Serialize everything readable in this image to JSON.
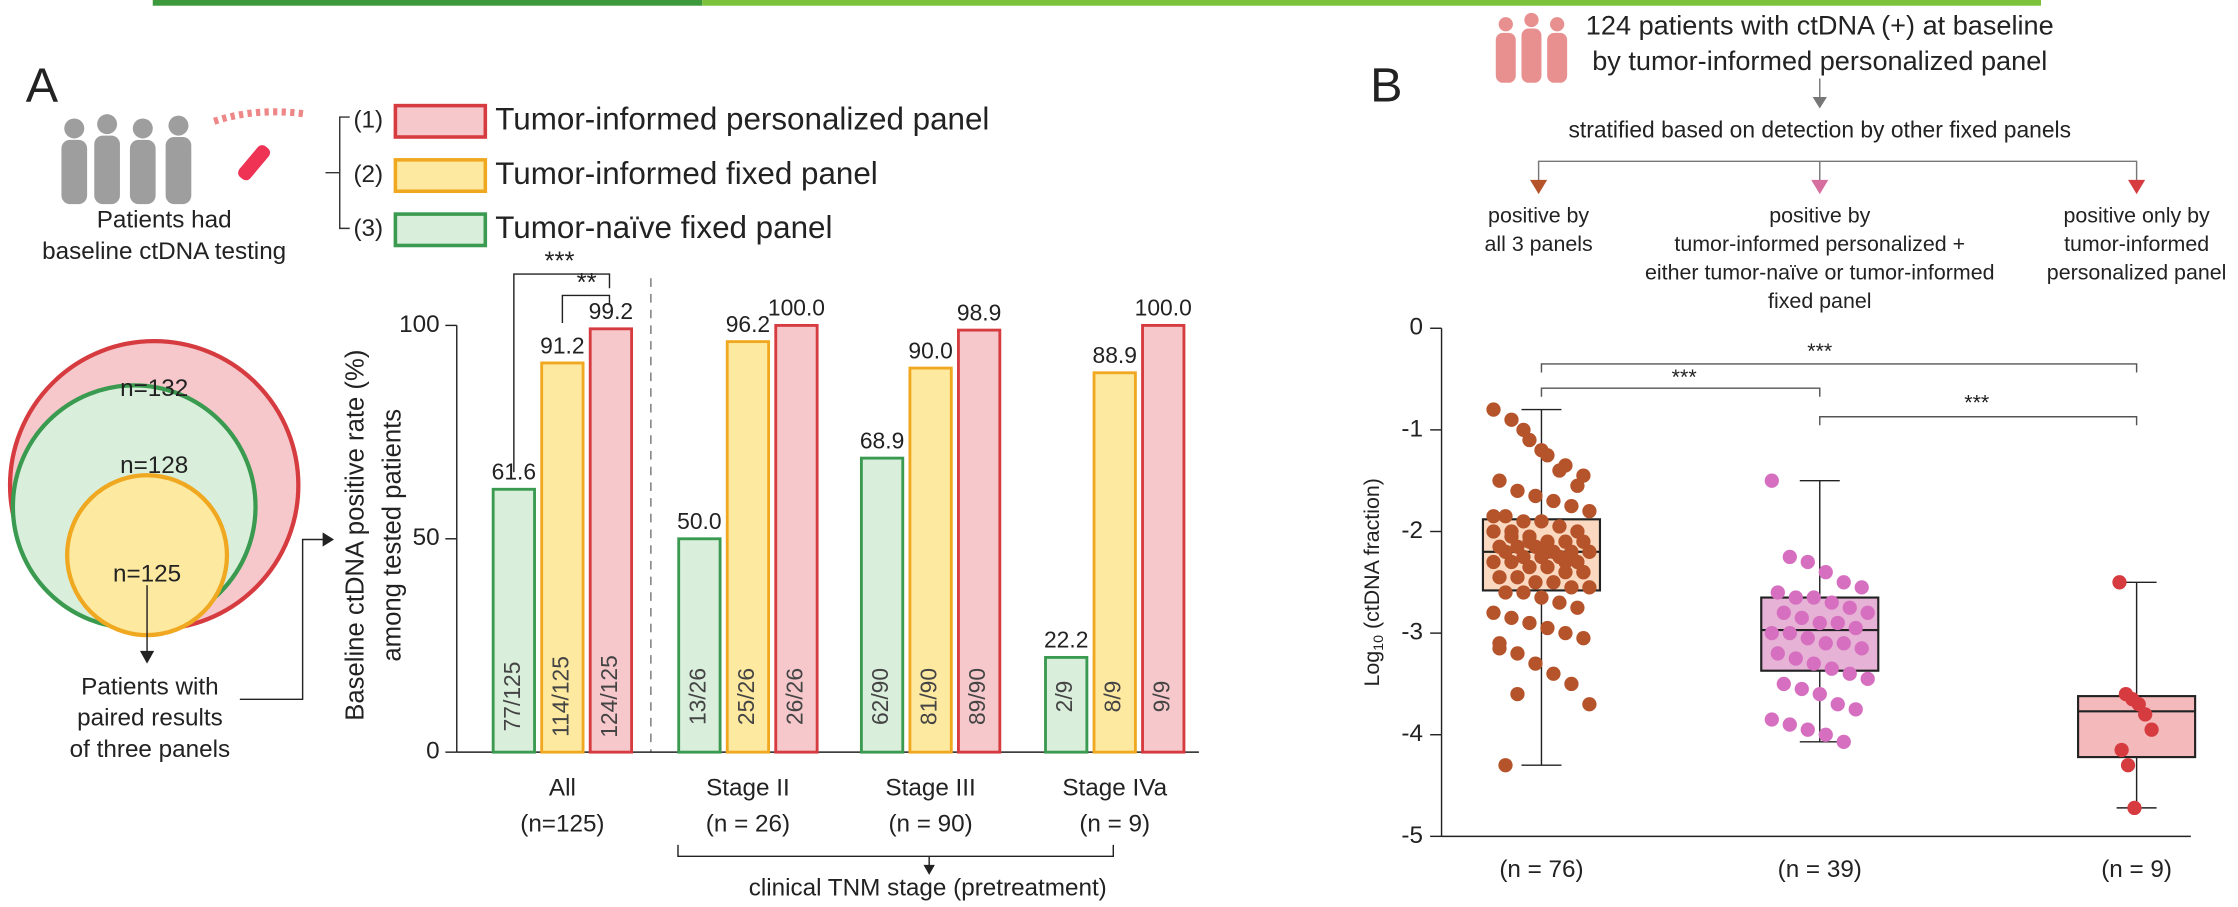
{
  "chart_data": [
    {
      "type": "bar",
      "panel_label": "A",
      "ylabel": [
        "Baseline ctDNA positive rate (%)",
        "among tested patients"
      ],
      "xlabel": "clinical TNM stage (pretreatment)",
      "categories": [
        "All",
        "Stage II",
        "Stage III",
        "Stage IVa"
      ],
      "category_counts": [
        "(n=125)",
        "(n = 26)",
        "(n = 90)",
        "(n = 9)"
      ],
      "ylim": [
        0,
        100
      ],
      "yticks": [
        0,
        50,
        100
      ],
      "series": [
        {
          "name": "Tumor-naïve fixed panel",
          "legend_prefix": "(3)",
          "color": "#3a9a50",
          "fill": "#d9eedb",
          "values": [
            61.6,
            50.0,
            68.9,
            22.2
          ],
          "value_labels": [
            "61.6",
            "50.0",
            "68.9",
            "22.2"
          ],
          "fraction_labels": [
            "77/125",
            "13/26",
            "62/90",
            "2/9"
          ]
        },
        {
          "name": "Tumor-informed fixed panel",
          "legend_prefix": "(2)",
          "color": "#f0a820",
          "fill": "#fde9a0",
          "values": [
            91.2,
            96.2,
            90.0,
            88.9
          ],
          "value_labels": [
            "91.2",
            "96.2",
            "90.0",
            "88.9"
          ],
          "fraction_labels": [
            "114/125",
            "25/26",
            "81/90",
            "8/9"
          ]
        },
        {
          "name": "Tumor-informed personalized panel",
          "legend_prefix": "(1)",
          "color": "#d63b40",
          "fill": "#f6c8cb",
          "values": [
            99.2,
            100.0,
            98.9,
            100.0
          ],
          "value_labels": [
            "99.2",
            "100.0",
            "98.9",
            "100.0"
          ],
          "fraction_labels": [
            "124/125",
            "26/26",
            "89/90",
            "9/9"
          ]
        }
      ],
      "significance": [
        "***",
        "**"
      ]
    },
    {
      "type": "box",
      "panel_label": "B",
      "ylabel": {
        "base": "Log",
        "sub": "10",
        "rest": " (ctDNA fraction)"
      },
      "categories": [
        "(n = 76)",
        "(n = 39)",
        "(n = 9)"
      ],
      "ylim": [
        -5,
        0
      ],
      "yticks": [
        0,
        -1,
        -2,
        -3,
        -4,
        -5
      ],
      "significance": [
        "***",
        "***",
        "***"
      ],
      "boxes": [
        {
          "fill": "#fbd9c0",
          "color": "#b5532a",
          "whislo": -4.3,
          "q1": -2.58,
          "med": -2.2,
          "q3": -1.88,
          "whishi": -0.8,
          "points": [
            -0.8,
            -0.9,
            -1.1,
            -1.25,
            -1.35,
            -1.45,
            -1.5,
            -1.6,
            -1.65,
            -1.7,
            -1.75,
            -1.8,
            -1.85,
            -1.9,
            -1.9,
            -1.95,
            -2.0,
            -2.0,
            -2.05,
            -2.05,
            -2.1,
            -2.1,
            -2.1,
            -2.15,
            -2.15,
            -2.15,
            -2.2,
            -2.2,
            -2.2,
            -2.2,
            -2.25,
            -2.25,
            -2.25,
            -2.3,
            -2.3,
            -2.3,
            -2.35,
            -2.35,
            -2.4,
            -2.4,
            -2.45,
            -2.45,
            -2.5,
            -2.5,
            -2.55,
            -2.55,
            -2.6,
            -2.6,
            -2.65,
            -2.7,
            -2.75,
            -2.8,
            -2.85,
            -2.9,
            -2.95,
            -3.0,
            -3.05,
            -3.1,
            -3.2,
            -3.3,
            -3.4,
            -3.5,
            -3.7,
            -4.3,
            -1.0,
            -1.2,
            -1.4,
            -1.55,
            -1.85,
            -2.0,
            -2.1,
            -2.2,
            -2.3,
            -2.4,
            -3.15,
            -3.6
          ]
        },
        {
          "fill": "#e6b3d6",
          "color": "#d66fbf",
          "whislo": -4.07,
          "q1": -3.37,
          "med": -2.97,
          "q3": -2.65,
          "whishi": -1.5,
          "points": [
            -1.5,
            -2.25,
            -2.3,
            -2.4,
            -2.5,
            -2.55,
            -2.6,
            -2.65,
            -2.65,
            -2.7,
            -2.75,
            -2.8,
            -2.8,
            -2.85,
            -2.9,
            -2.9,
            -2.95,
            -3.0,
            -3.0,
            -3.05,
            -3.1,
            -3.1,
            -3.15,
            -3.2,
            -3.25,
            -3.3,
            -3.35,
            -3.4,
            -3.45,
            -3.5,
            -3.55,
            -3.6,
            -3.7,
            -3.75,
            -3.85,
            -3.9,
            -3.95,
            -4.0,
            -4.07
          ]
        },
        {
          "fill": "#f4b9bb",
          "color": "#d63b40",
          "whislo": -4.72,
          "q1": -4.22,
          "med": -3.77,
          "q3": -3.62,
          "whishi": -2.5,
          "points": [
            -2.5,
            -3.6,
            -3.65,
            -3.7,
            -3.8,
            -3.95,
            -4.15,
            -4.3,
            -4.72
          ]
        }
      ]
    }
  ],
  "diagram": {
    "patients_text": [
      "Patients had",
      "baseline ctDNA testing"
    ],
    "venn": [
      "n=132",
      "n=128",
      "n=125"
    ],
    "paired_text": [
      "Patients with",
      "paired results",
      "of three panels"
    ],
    "flow_title": [
      "124 patients with ctDNA (+) at baseline",
      "by tumor-informed personalized panel"
    ],
    "flow_subtitle": "stratified based on detection by other fixed panels",
    "flow_groups": [
      [
        "positive by",
        "all 3 panels"
      ],
      [
        "positive by",
        "tumor-informed personalized +",
        "either tumor-naïve or tumor-informed",
        "fixed panel"
      ],
      [
        "positive only by",
        "tumor-informed",
        "personalized panel"
      ]
    ]
  }
}
